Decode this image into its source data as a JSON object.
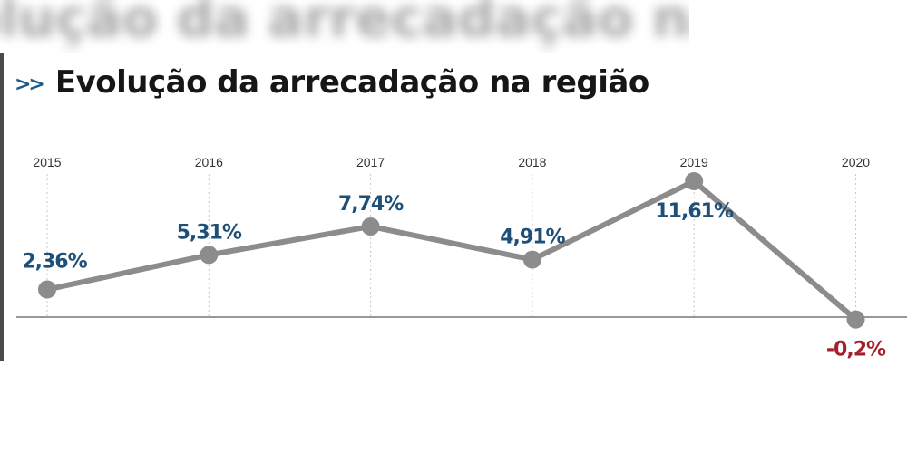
{
  "header": {
    "title": "Evolução da arrecadação na região",
    "chevrons": ">>",
    "blurred_heading": "olução da arrecadação na região"
  },
  "colors": {
    "line": "#8c8c8c",
    "positive_label": "#1e4f78",
    "negative_label": "#a3202c",
    "year_label": "#333333",
    "baseline": "#777777",
    "grid": "#c8c8c8"
  },
  "chart_data": {
    "type": "line",
    "title": "Evolução da arrecadação na região",
    "categories": [
      "2015",
      "2016",
      "2017",
      "2018",
      "2019",
      "2020"
    ],
    "values": [
      2.36,
      5.31,
      7.74,
      4.91,
      11.61,
      -0.2
    ],
    "data_labels": [
      "2,36%",
      "5,31%",
      "7,74%",
      "4,91%",
      "11,61%",
      "-0,2%"
    ],
    "label_position": [
      "above",
      "above",
      "above",
      "above",
      "below",
      "below"
    ],
    "xlabel": "",
    "ylabel": "",
    "ylim": [
      -0.2,
      11.61
    ],
    "zero_line": true,
    "grid": "vertical dotted lines at each year",
    "legend": "none"
  }
}
